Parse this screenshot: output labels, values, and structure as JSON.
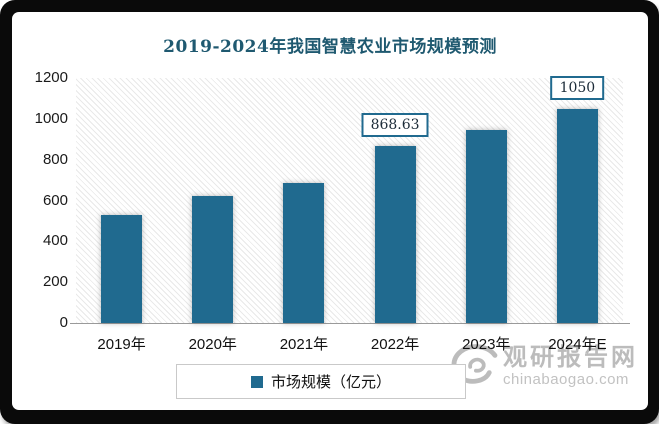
{
  "title": {
    "text": "2019-2024年我国智慧农业市场规模预测",
    "color": "#1F5970"
  },
  "chart_data": {
    "type": "bar",
    "title": "2019-2024年我国智慧农业市场规模预测",
    "categories": [
      "2019年",
      "2020年",
      "2021年",
      "2022年",
      "2023年",
      "2024年E"
    ],
    "series": [
      {
        "name": "市场规模（亿元）",
        "values": [
          527,
          622,
          685,
          868.63,
          945,
          1050
        ]
      }
    ],
    "data_labels": [
      {
        "index": 3,
        "text": "868.63"
      },
      {
        "index": 5,
        "text": "1050"
      }
    ],
    "xlabel": "",
    "ylabel": "",
    "ylim": [
      0,
      1200
    ],
    "yticks": [
      0,
      200,
      400,
      600,
      800,
      1000,
      1200
    ],
    "grid": false,
    "legend_position": "bottom",
    "bar_color": "#206A8F",
    "plot_background": "diagonal-hatch"
  },
  "legend": {
    "items": [
      {
        "label": "市场规模（亿元）",
        "color": "#206A8F"
      }
    ]
  },
  "watermark": {
    "site_name": "观研报告网",
    "site_url": "chinabaogao.com",
    "color": "#BCBCBC",
    "logo": "swirl-eye-logo"
  }
}
